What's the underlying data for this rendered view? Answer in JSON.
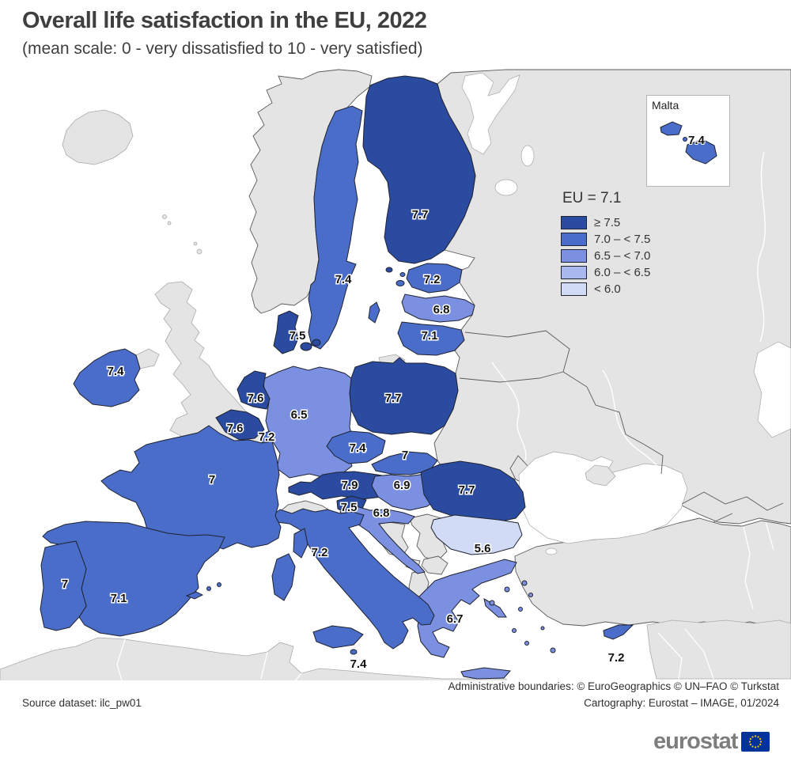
{
  "title": "Overall life satisfaction in the EU, 2022",
  "subtitle": "(mean scale: 0 - very dissatisfied to 10 - very satisfied)",
  "legend": {
    "eu_label": "EU = 7.1",
    "classes": [
      {
        "label": "≥ 7.5",
        "color": "#2a4b9f"
      },
      {
        "label": "7.0 – < 7.5",
        "color": "#4a6dca"
      },
      {
        "label": "6.5 – < 7.0",
        "color": "#7b90e0"
      },
      {
        "label": "6.0 – < 6.5",
        "color": "#a9b8ee"
      },
      {
        "label": "< 6.0",
        "color": "#d2dbf6"
      }
    ]
  },
  "inset": {
    "title": "Malta",
    "value": "7.4"
  },
  "countries": [
    {
      "name": "Finland",
      "value": "7.7",
      "class": 0
    },
    {
      "name": "Sweden",
      "value": "7.4",
      "class": 1
    },
    {
      "name": "Estonia",
      "value": "7.2",
      "class": 1
    },
    {
      "name": "Latvia",
      "value": "6.8",
      "class": 2
    },
    {
      "name": "Lithuania",
      "value": "7.1",
      "class": 1
    },
    {
      "name": "Denmark",
      "value": "7.5",
      "class": 0
    },
    {
      "name": "Ireland",
      "value": "7.4",
      "class": 1
    },
    {
      "name": "Netherlands",
      "value": "7.6",
      "class": 0
    },
    {
      "name": "Belgium",
      "value": "7.6",
      "class": 0
    },
    {
      "name": "Luxembourg",
      "value": "7.2",
      "class": 1
    },
    {
      "name": "Germany",
      "value": "6.5",
      "class": 2
    },
    {
      "name": "Poland",
      "value": "7.7",
      "class": 0
    },
    {
      "name": "Czechia",
      "value": "7.4",
      "class": 1
    },
    {
      "name": "Slovakia",
      "value": "7",
      "class": 1
    },
    {
      "name": "Austria",
      "value": "7.9",
      "class": 0
    },
    {
      "name": "Hungary",
      "value": "6.9",
      "class": 2
    },
    {
      "name": "Slovenia",
      "value": "7.5",
      "class": 0
    },
    {
      "name": "Croatia",
      "value": "6.8",
      "class": 2
    },
    {
      "name": "Romania",
      "value": "7.7",
      "class": 0
    },
    {
      "name": "Bulgaria",
      "value": "5.6",
      "class": 4
    },
    {
      "name": "Italy",
      "value": "7.2",
      "class": 1
    },
    {
      "name": "France",
      "value": "7",
      "class": 1
    },
    {
      "name": "Spain",
      "value": "7.1",
      "class": 1
    },
    {
      "name": "Portugal",
      "value": "7",
      "class": 1
    },
    {
      "name": "Greece",
      "value": "6.7",
      "class": 2
    },
    {
      "name": "Malta",
      "value": "7.4",
      "class": 1
    },
    {
      "name": "Cyprus",
      "value": "7.2",
      "class": 1
    }
  ],
  "footer": {
    "source": "Source dataset: ilc_pw01",
    "boundaries": "Administrative boundaries: © EuroGeographics © UN–FAO © Turkstat",
    "cartography": "Cartography: Eurostat – IMAGE, 01/2024"
  },
  "logo": {
    "wordmark": "eurostat",
    "flag_blue": "#003399",
    "star_yellow": "#ffcc00"
  },
  "map": {
    "non_eu_fill": "#e4e4e4",
    "eu_border": "#1f2330",
    "non_eu_border": "#5a5a5a",
    "coast_line": "#a9a9a9"
  }
}
